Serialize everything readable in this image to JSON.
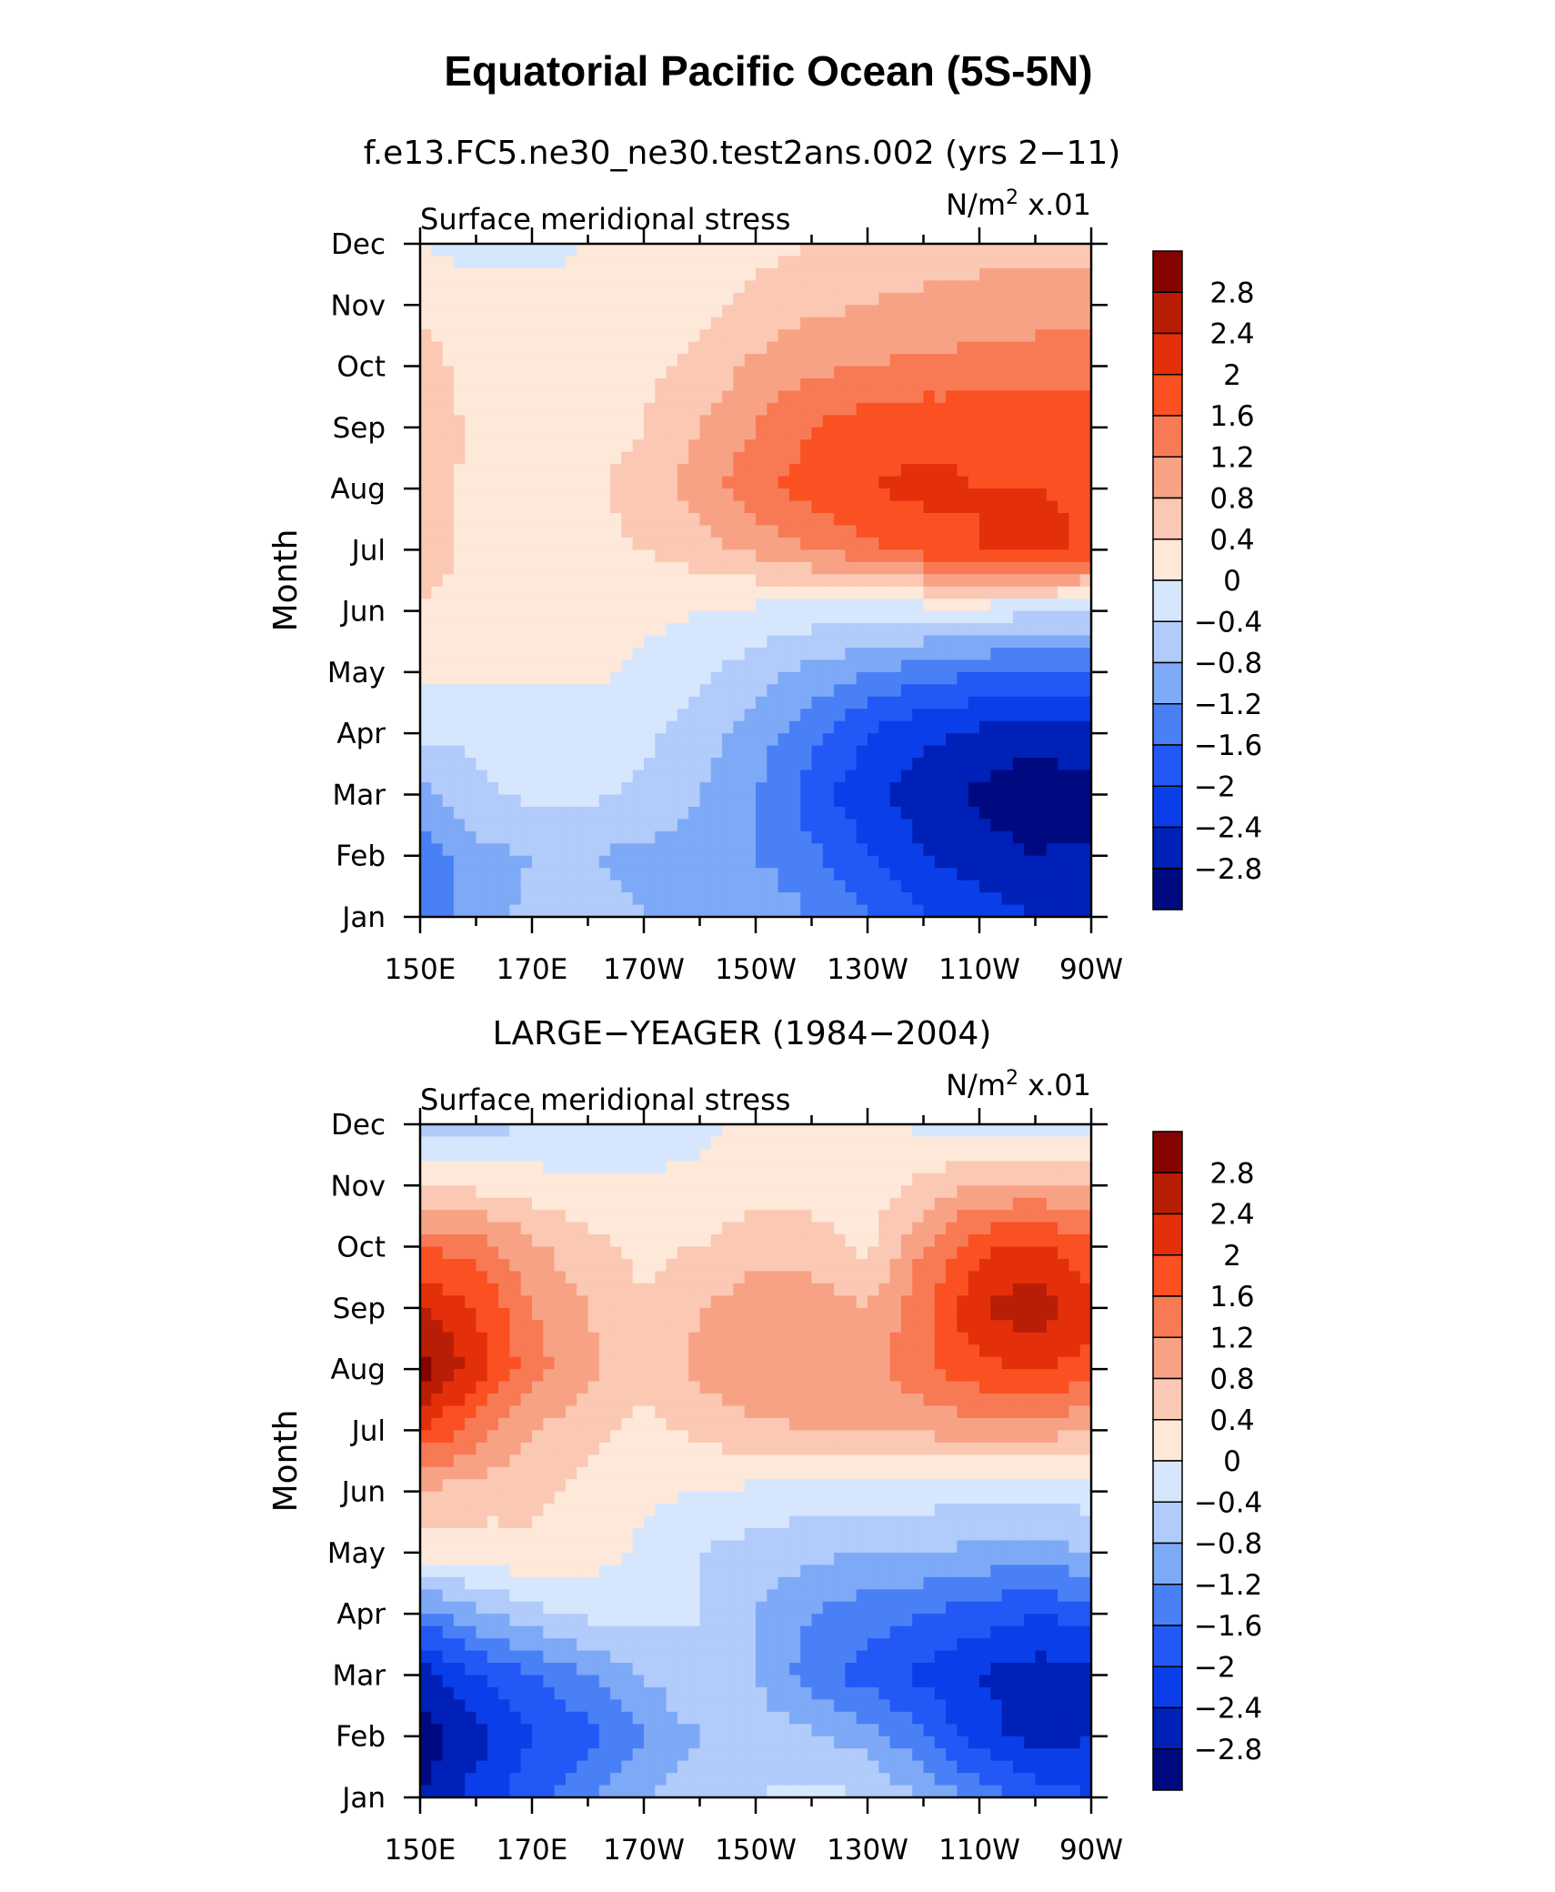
{
  "title": "Equatorial Pacific Ocean (5S-5N)",
  "colors": {
    "palette": [
      "#000a80",
      "#0021b8",
      "#0a3ee8",
      "#2258f5",
      "#4a80f5",
      "#7ea9f7",
      "#b1cbfa",
      "#d6e7fd",
      "#fde8d9",
      "#fac8b3",
      "#f8a285",
      "#f77a55",
      "#fa5022",
      "#e32f0a",
      "#b81e05",
      "#850400"
    ]
  },
  "chart_data": [
    {
      "type": "heatmap",
      "case_title": "f.e13.FC5.ne30_ne30.test2ans.002 (yrs 2−11)",
      "left_label": "Surface meridional stress",
      "right_label_base": "N/m",
      "right_label_exp": "2",
      "right_label_scale": " x.01",
      "ylabel": "Month",
      "x_ticks": [
        "150E",
        "170E",
        "170W",
        "150W",
        "130W",
        "110W",
        "90W"
      ],
      "x_tick_lons": [
        150,
        170,
        190,
        210,
        230,
        250,
        270
      ],
      "xlim": [
        150,
        270
      ],
      "y_ticks": [
        "Jan",
        "Feb",
        "Mar",
        "Apr",
        "May",
        "Jun",
        "Jul",
        "Aug",
        "Sep",
        "Oct",
        "Nov",
        "Dec"
      ],
      "ylim": [
        0,
        11
      ],
      "levels": [
        -2.8,
        -2.4,
        -2,
        -1.6,
        -1.2,
        -0.8,
        -0.4,
        0,
        0.4,
        0.8,
        1.2,
        1.6,
        2,
        2.4,
        2.8
      ],
      "level_labels": [
        "2.8",
        "2.4",
        "2",
        "1.6",
        "1.2",
        "0.8",
        "0.4",
        "0",
        "−0.4",
        "−0.8",
        "−1.2",
        "−1.6",
        "−2",
        "−2.4",
        "−2.8"
      ],
      "lons": [
        150,
        160,
        170,
        180,
        190,
        200,
        210,
        220,
        230,
        240,
        250,
        260,
        270
      ],
      "values": [
        [
          -1.6,
          -1.0,
          -0.7,
          -0.7,
          -0.8,
          -0.8,
          -0.9,
          -1.2,
          -1.6,
          -2.0,
          -2.2,
          -2.4,
          -2.4
        ],
        [
          -1.5,
          -0.9,
          -0.8,
          -0.8,
          -0.9,
          -1.0,
          -1.2,
          -1.5,
          -2.0,
          -2.4,
          -2.6,
          -2.8,
          -2.7
        ],
        [
          -1.0,
          -0.5,
          -0.3,
          -0.3,
          -0.5,
          -0.8,
          -1.2,
          -1.8,
          -2.3,
          -2.6,
          -2.9,
          -3.1,
          -3.0
        ],
        [
          -0.3,
          -0.3,
          -0.3,
          -0.3,
          -0.3,
          -0.6,
          -1.0,
          -1.5,
          -2.0,
          -2.3,
          -2.5,
          -2.6,
          -2.5
        ],
        [
          0.1,
          0.1,
          0.1,
          0.1,
          -0.1,
          -0.3,
          -0.6,
          -0.9,
          -1.2,
          -1.4,
          -1.6,
          -1.7,
          -1.6
        ],
        [
          0.4,
          0.2,
          0.2,
          0.2,
          0.1,
          0.0,
          -0.1,
          -0.2,
          -0.2,
          -0.2,
          -0.2,
          -0.3,
          -0.4
        ],
        [
          0.6,
          0.3,
          0.2,
          0.3,
          0.4,
          0.6,
          0.9,
          1.2,
          1.5,
          1.8,
          2.0,
          2.2,
          1.9
        ],
        [
          0.6,
          0.3,
          0.2,
          0.3,
          0.6,
          1.0,
          1.5,
          1.8,
          2.0,
          2.1,
          2.0,
          2.0,
          1.9
        ],
        [
          0.7,
          0.3,
          0.2,
          0.2,
          0.4,
          0.8,
          1.2,
          1.6,
          1.8,
          1.9,
          1.9,
          1.9,
          1.8
        ],
        [
          0.6,
          0.2,
          0.2,
          0.2,
          0.3,
          0.5,
          0.9,
          1.1,
          1.2,
          1.3,
          1.3,
          1.4,
          1.4
        ],
        [
          0.3,
          0.1,
          0.1,
          0.1,
          0.2,
          0.3,
          0.5,
          0.7,
          0.8,
          0.9,
          1.0,
          1.0,
          1.0
        ],
        [
          0.0,
          -0.1,
          -0.1,
          0.0,
          0.1,
          0.2,
          0.3,
          0.4,
          0.5,
          0.6,
          0.6,
          0.6,
          0.6
        ]
      ]
    },
    {
      "type": "heatmap",
      "case_title": "LARGE−YEAGER (1984−2004)",
      "left_label": "Surface meridional stress",
      "right_label_base": "N/m",
      "right_label_exp": "2",
      "right_label_scale": " x.01",
      "ylabel": "Month",
      "x_ticks": [
        "150E",
        "170E",
        "170W",
        "150W",
        "130W",
        "110W",
        "90W"
      ],
      "x_tick_lons": [
        150,
        170,
        190,
        210,
        230,
        250,
        270
      ],
      "xlim": [
        150,
        270
      ],
      "y_ticks": [
        "Jan",
        "Feb",
        "Mar",
        "Apr",
        "May",
        "Jun",
        "Jul",
        "Aug",
        "Sep",
        "Oct",
        "Nov",
        "Dec"
      ],
      "ylim": [
        0,
        11
      ],
      "levels": [
        -2.8,
        -2.4,
        -2,
        -1.6,
        -1.2,
        -0.8,
        -0.4,
        0,
        0.4,
        0.8,
        1.2,
        1.6,
        2,
        2.4,
        2.8
      ],
      "level_labels": [
        "2.8",
        "2.4",
        "2",
        "1.6",
        "1.2",
        "0.8",
        "0.4",
        "0",
        "−0.4",
        "−0.8",
        "−1.2",
        "−1.6",
        "−2",
        "−2.4",
        "−2.8"
      ],
      "lons": [
        150,
        160,
        170,
        180,
        190,
        200,
        210,
        220,
        230,
        240,
        250,
        260,
        270
      ],
      "values": [
        [
          -2.8,
          -2.2,
          -1.8,
          -1.2,
          -0.8,
          -0.6,
          -0.4,
          -0.3,
          -0.4,
          -0.8,
          -1.4,
          -1.8,
          -2.0
        ],
        [
          -3.0,
          -2.6,
          -2.0,
          -1.8,
          -1.2,
          -0.8,
          -0.6,
          -0.7,
          -1.0,
          -1.6,
          -2.2,
          -2.6,
          -2.4
        ],
        [
          -2.6,
          -2.0,
          -1.6,
          -1.2,
          -0.8,
          -0.4,
          -0.8,
          -1.4,
          -1.8,
          -2.1,
          -2.4,
          -2.6,
          -2.5
        ],
        [
          -1.4,
          -0.9,
          -0.5,
          -0.3,
          -0.3,
          -0.4,
          -0.8,
          -1.2,
          -1.4,
          -1.6,
          -1.8,
          -2.0,
          -1.8
        ],
        [
          0.2,
          0.2,
          0.3,
          0.2,
          -0.1,
          -0.4,
          -0.6,
          -0.7,
          -0.8,
          -0.8,
          -0.9,
          -1.0,
          -0.8
        ],
        [
          0.8,
          0.6,
          0.5,
          0.3,
          0.1,
          0.0,
          -0.1,
          -0.2,
          -0.2,
          -0.2,
          -0.3,
          -0.3,
          -0.2
        ],
        [
          2.0,
          1.4,
          0.8,
          0.5,
          0.3,
          0.5,
          0.7,
          0.8,
          0.8,
          0.9,
          1.0,
          1.0,
          0.8
        ],
        [
          3.0,
          2.2,
          1.4,
          0.9,
          0.5,
          0.9,
          1.2,
          1.1,
          1.0,
          1.5,
          1.9,
          2.0,
          1.8
        ],
        [
          2.4,
          2.0,
          1.2,
          0.8,
          0.4,
          0.8,
          1.0,
          1.0,
          0.8,
          1.5,
          2.4,
          2.7,
          2.2
        ],
        [
          1.6,
          1.4,
          0.9,
          0.5,
          0.3,
          0.4,
          0.7,
          0.6,
          0.3,
          1.2,
          1.9,
          2.1,
          1.7
        ],
        [
          0.3,
          0.3,
          0.2,
          0.1,
          0.1,
          0.1,
          0.2,
          0.2,
          0.2,
          0.5,
          0.8,
          0.9,
          0.7
        ],
        [
          -0.7,
          -0.6,
          -0.4,
          -0.4,
          -0.3,
          -0.1,
          0.1,
          0.2,
          0.1,
          -0.1,
          -0.2,
          -0.2,
          -0.2
        ]
      ]
    }
  ]
}
